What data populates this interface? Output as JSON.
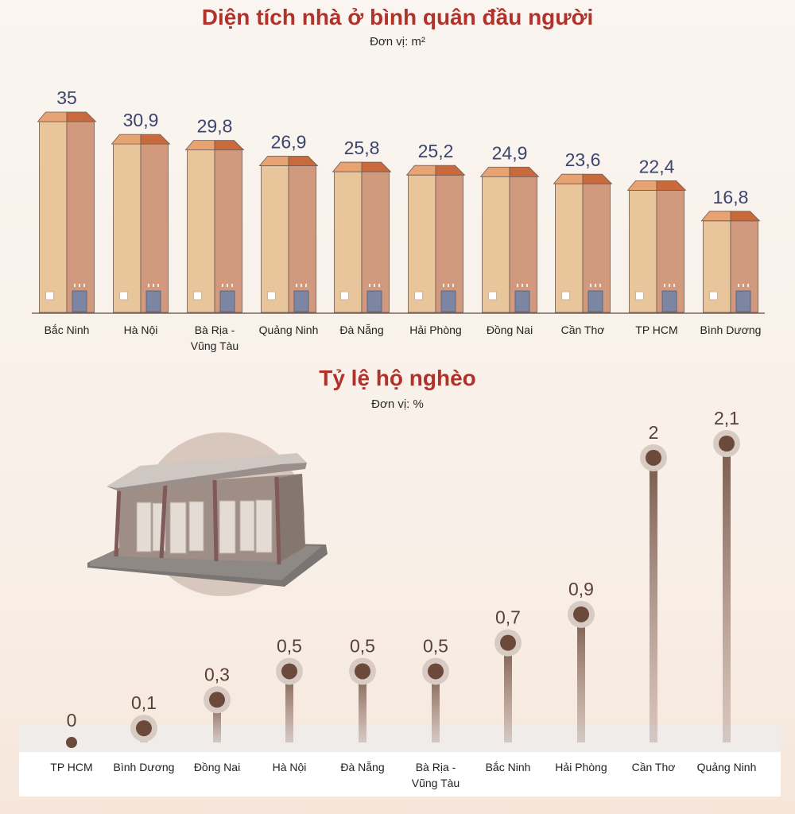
{
  "chart_data": [
    {
      "type": "bar",
      "title": "Diện tích nhà ở bình quân đầu người",
      "unit_label": "Đơn vị: m²",
      "categories": [
        "Bắc Ninh",
        "Hà Nội",
        "Bà Rịa - Vũng Tàu",
        "Quảng Ninh",
        "Đà Nẵng",
        "Hải Phòng",
        "Đồng Nai",
        "Cần Thơ",
        "TP HCM",
        "Bình Dương"
      ],
      "values": [
        35,
        30.9,
        29.8,
        26.9,
        25.8,
        25.2,
        24.9,
        23.6,
        22.4,
        16.8
      ],
      "value_labels": [
        "35",
        "30,9",
        "29,8",
        "26,9",
        "25,8",
        "25,2",
        "24,9",
        "23,6",
        "22,4",
        "16,8"
      ]
    },
    {
      "type": "lollipop",
      "title": "Tỷ lệ hộ nghèo",
      "unit_label": "Đơn vị: %",
      "categories": [
        "TP HCM",
        "Bình Dương",
        "Đồng Nai",
        "Hà Nội",
        "Đà Nẵng",
        "Bà Rịa - Vũng Tàu",
        "Bắc Ninh",
        "Hải Phòng",
        "Cần Thơ",
        "Quảng Ninh"
      ],
      "values": [
        0,
        0.1,
        0.3,
        0.5,
        0.5,
        0.5,
        0.7,
        0.9,
        2,
        2.1
      ],
      "value_labels": [
        "0",
        "0,1",
        "0,3",
        "0,5",
        "0,5",
        "0,5",
        "0,7",
        "0,9",
        "2",
        "2,1"
      ]
    }
  ],
  "colors": {
    "title": "#b0322b",
    "bar_light": "#e9c59c",
    "bar_dark": "#d19a7f",
    "roof_light": "#e8a373",
    "roof_dark": "#c96a3d",
    "value_text": "#3c4470",
    "lollipop": "#6b4a3c"
  }
}
